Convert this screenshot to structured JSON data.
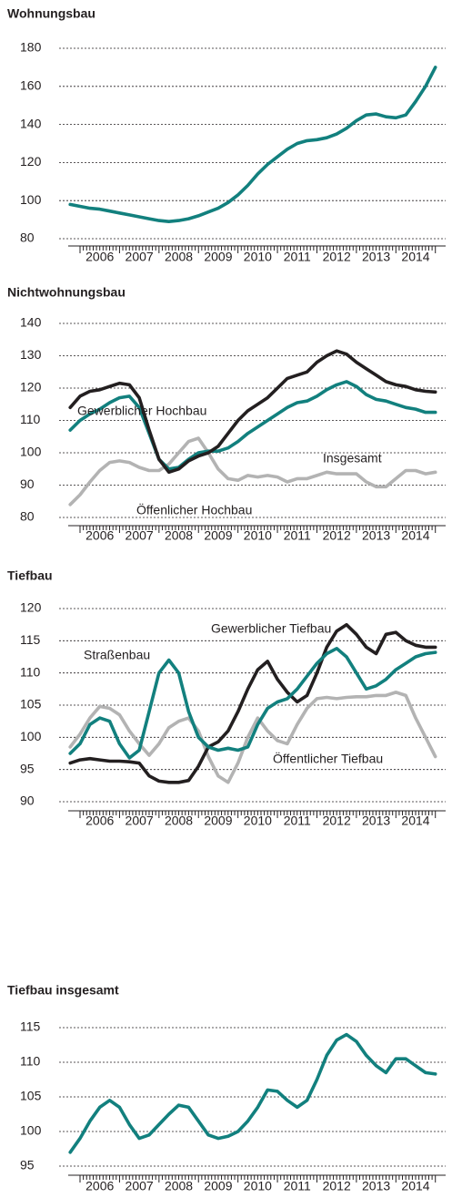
{
  "chart_data": [
    {
      "type": "line",
      "title": "Wohnungsbau",
      "x": [
        2005.75,
        2006,
        2006.25,
        2006.5,
        2006.75,
        2007,
        2007.25,
        2007.5,
        2007.75,
        2008,
        2008.25,
        2008.5,
        2008.75,
        2009,
        2009.25,
        2009.5,
        2009.75,
        2010,
        2010.25,
        2010.5,
        2010.75,
        2011,
        2011.25,
        2011.5,
        2011.75,
        2012,
        2012.25,
        2012.5,
        2012.75,
        2013,
        2013.25,
        2013.5,
        2013.75,
        2014,
        2014.25,
        2014.5,
        2014.75,
        2015
      ],
      "xlim": [
        2005.47,
        2015.26
      ],
      "xticks": [
        {
          "value": 2006.5,
          "label": "2006"
        },
        {
          "value": 2007.5,
          "label": "2007"
        },
        {
          "value": 2008.5,
          "label": "2008"
        },
        {
          "value": 2009.5,
          "label": "2009"
        },
        {
          "value": 2010.5,
          "label": "2010"
        },
        {
          "value": 2011.5,
          "label": "2011"
        },
        {
          "value": 2012.5,
          "label": "2012"
        },
        {
          "value": 2013.5,
          "label": "2013"
        },
        {
          "value": 2014.5,
          "label": "2014"
        }
      ],
      "ylim": [
        80,
        180
      ],
      "yticks": [
        80,
        100,
        120,
        140,
        160,
        180
      ],
      "grid": true,
      "series": [
        {
          "name": null,
          "color": "#12807e",
          "values": [
            98,
            97,
            96,
            95.5,
            94.5,
            93.5,
            92.5,
            91.5,
            90.5,
            89.5,
            89,
            89.5,
            90.5,
            92,
            94,
            96,
            99,
            103,
            108,
            114,
            119,
            123,
            127,
            130,
            131.5,
            132,
            133,
            135,
            138,
            142,
            145,
            145.5,
            144,
            143.5,
            145,
            152,
            160,
            170
          ]
        }
      ]
    },
    {
      "type": "line",
      "title": "Nichtwohnungsbau",
      "x": [
        2005.75,
        2006,
        2006.25,
        2006.5,
        2006.75,
        2007,
        2007.25,
        2007.5,
        2007.75,
        2008,
        2008.25,
        2008.5,
        2008.75,
        2009,
        2009.25,
        2009.5,
        2009.75,
        2010,
        2010.25,
        2010.5,
        2010.75,
        2011,
        2011.25,
        2011.5,
        2011.75,
        2012,
        2012.25,
        2012.5,
        2012.75,
        2013,
        2013.25,
        2013.5,
        2013.75,
        2014,
        2014.25,
        2014.5,
        2014.75,
        2015
      ],
      "xlim": [
        2005.47,
        2015.26
      ],
      "xticks": [
        {
          "value": 2006.5,
          "label": "2006"
        },
        {
          "value": 2007.5,
          "label": "2007"
        },
        {
          "value": 2008.5,
          "label": "2008"
        },
        {
          "value": 2009.5,
          "label": "2009"
        },
        {
          "value": 2010.5,
          "label": "2010"
        },
        {
          "value": 2011.5,
          "label": "2011"
        },
        {
          "value": 2012.5,
          "label": "2012"
        },
        {
          "value": 2013.5,
          "label": "2013"
        },
        {
          "value": 2014.5,
          "label": "2014"
        }
      ],
      "ylim": [
        80,
        140
      ],
      "yticks": [
        80,
        90,
        100,
        110,
        120,
        130,
        140
      ],
      "grid": true,
      "series": [
        {
          "name": "Öffenlicher Hochbau",
          "color": "#b3b3b3",
          "values": [
            84,
            87,
            91,
            94.5,
            97,
            97.5,
            97,
            95.5,
            94.5,
            94.5,
            96.5,
            100,
            103.5,
            104.5,
            100,
            95,
            92,
            91.5,
            93,
            92.5,
            93,
            92.5,
            91,
            92,
            92,
            93,
            94,
            93.5,
            93.5,
            93.5,
            91,
            89.5,
            89.5,
            92,
            94.5,
            94.5,
            93.5,
            94
          ]
        },
        {
          "name": "Insgesamt",
          "color": "#12807e",
          "values": [
            107,
            110,
            112,
            113.5,
            115.5,
            117,
            117.5,
            114,
            106,
            98,
            95,
            95.5,
            98,
            100,
            100.5,
            100.5,
            101.5,
            103.5,
            106,
            108,
            110,
            112,
            114,
            115.5,
            116,
            117.5,
            119.5,
            121,
            122,
            120.5,
            118,
            116.5,
            116,
            115,
            114,
            113.5,
            112.5,
            112.5
          ]
        },
        {
          "name": "Gewerblicher Hochbau",
          "color": "#231f20",
          "values": [
            114,
            117.5,
            119,
            119.5,
            120.5,
            121.5,
            121,
            117,
            107,
            98,
            94,
            95,
            97.5,
            99,
            100,
            102,
            106,
            110,
            113,
            115,
            117,
            120,
            123,
            124,
            125,
            128,
            130,
            131.5,
            130.5,
            128,
            126,
            124,
            122,
            121,
            120.5,
            119.5,
            119,
            118.8
          ]
        }
      ]
    },
    {
      "type": "line",
      "title": "Tiefbau",
      "x": [
        2005.75,
        2006,
        2006.25,
        2006.5,
        2006.75,
        2007,
        2007.25,
        2007.5,
        2007.75,
        2008,
        2008.25,
        2008.5,
        2008.75,
        2009,
        2009.25,
        2009.5,
        2009.75,
        2010,
        2010.25,
        2010.5,
        2010.75,
        2011,
        2011.25,
        2011.5,
        2011.75,
        2012,
        2012.25,
        2012.5,
        2012.75,
        2013,
        2013.25,
        2013.5,
        2013.75,
        2014,
        2014.25,
        2014.5,
        2014.75,
        2015
      ],
      "xlim": [
        2005.47,
        2015.26
      ],
      "xticks": [
        {
          "value": 2006.5,
          "label": "2006"
        },
        {
          "value": 2007.5,
          "label": "2007"
        },
        {
          "value": 2008.5,
          "label": "2008"
        },
        {
          "value": 2009.5,
          "label": "2009"
        },
        {
          "value": 2010.5,
          "label": "2010"
        },
        {
          "value": 2011.5,
          "label": "2011"
        },
        {
          "value": 2012.5,
          "label": "2012"
        },
        {
          "value": 2013.5,
          "label": "2013"
        },
        {
          "value": 2014.5,
          "label": "2014"
        }
      ],
      "ylim": [
        90,
        120
      ],
      "yticks": [
        90,
        95,
        100,
        105,
        110,
        115,
        120
      ],
      "grid": true,
      "series": [
        {
          "name": "Öffentlicher Tiefbau",
          "color": "#b3b3b3",
          "values": [
            98.5,
            100.5,
            103,
            104.8,
            104.5,
            103.5,
            101,
            99,
            97.2,
            99,
            101.5,
            102.5,
            103,
            101,
            97,
            94,
            93,
            96,
            100,
            103,
            101,
            99.5,
            99,
            102,
            104.5,
            106,
            106.2,
            106,
            106.2,
            106.3,
            106.3,
            106.5,
            106.5,
            107,
            106.5,
            103,
            100,
            97
          ]
        },
        {
          "name": "Gewerblicher Tiefbau",
          "color": "#231f20",
          "values": [
            96,
            96.5,
            96.7,
            96.5,
            96.3,
            96.3,
            96.2,
            96,
            94,
            93.2,
            93,
            93,
            93.3,
            95.5,
            98.5,
            99.3,
            101,
            104,
            107.5,
            110.5,
            111.8,
            109,
            107,
            105.5,
            106.5,
            110,
            114,
            116.5,
            117.5,
            116,
            114,
            113,
            116,
            116.3,
            115,
            114.3,
            114,
            114
          ]
        },
        {
          "name": "Straßenbau",
          "color": "#12807e",
          "values": [
            97.5,
            99,
            102,
            103,
            102.5,
            99,
            96.8,
            98,
            104,
            110,
            112,
            110,
            104,
            100,
            98.5,
            98,
            98.3,
            98,
            98.5,
            102,
            104.5,
            105.5,
            106,
            107.5,
            109.5,
            111.5,
            113,
            113.8,
            112.5,
            110,
            107.5,
            108,
            109,
            110.5,
            111.5,
            112.5,
            113,
            113.2
          ]
        }
      ]
    },
    {
      "type": "line",
      "title": "Tiefbau insgesamt",
      "x": [
        2005.75,
        2006,
        2006.25,
        2006.5,
        2006.75,
        2007,
        2007.25,
        2007.5,
        2007.75,
        2008,
        2008.25,
        2008.5,
        2008.75,
        2009,
        2009.25,
        2009.5,
        2009.75,
        2010,
        2010.25,
        2010.5,
        2010.75,
        2011,
        2011.25,
        2011.5,
        2011.75,
        2012,
        2012.25,
        2012.5,
        2012.75,
        2013,
        2013.25,
        2013.5,
        2013.75,
        2014,
        2014.25,
        2014.5,
        2014.75,
        2015
      ],
      "xlim": [
        2005.47,
        2015.26
      ],
      "xticks": [
        {
          "value": 2006.5,
          "label": "2006"
        },
        {
          "value": 2007.5,
          "label": "2007"
        },
        {
          "value": 2008.5,
          "label": "2008"
        },
        {
          "value": 2009.5,
          "label": "2009"
        },
        {
          "value": 2010.5,
          "label": "2010"
        },
        {
          "value": 2011.5,
          "label": "2011"
        },
        {
          "value": 2012.5,
          "label": "2012"
        },
        {
          "value": 2013.5,
          "label": "2013"
        },
        {
          "value": 2014.5,
          "label": "2014"
        }
      ],
      "ylim": [
        95,
        115
      ],
      "yticks": [
        95,
        100,
        105,
        110,
        115
      ],
      "grid": true,
      "series": [
        {
          "name": null,
          "color": "#12807e",
          "values": [
            97,
            99,
            101.5,
            103.5,
            104.5,
            103.5,
            101,
            99,
            99.5,
            101,
            102.5,
            103.8,
            103.5,
            101.5,
            99.5,
            99,
            99.3,
            100,
            101.5,
            103.5,
            106,
            105.8,
            104.5,
            103.5,
            104.5,
            107.5,
            111,
            113.2,
            114,
            113,
            111,
            109.5,
            108.5,
            110.5,
            110.5,
            109.5,
            108.5,
            108.3
          ]
        }
      ]
    }
  ]
}
